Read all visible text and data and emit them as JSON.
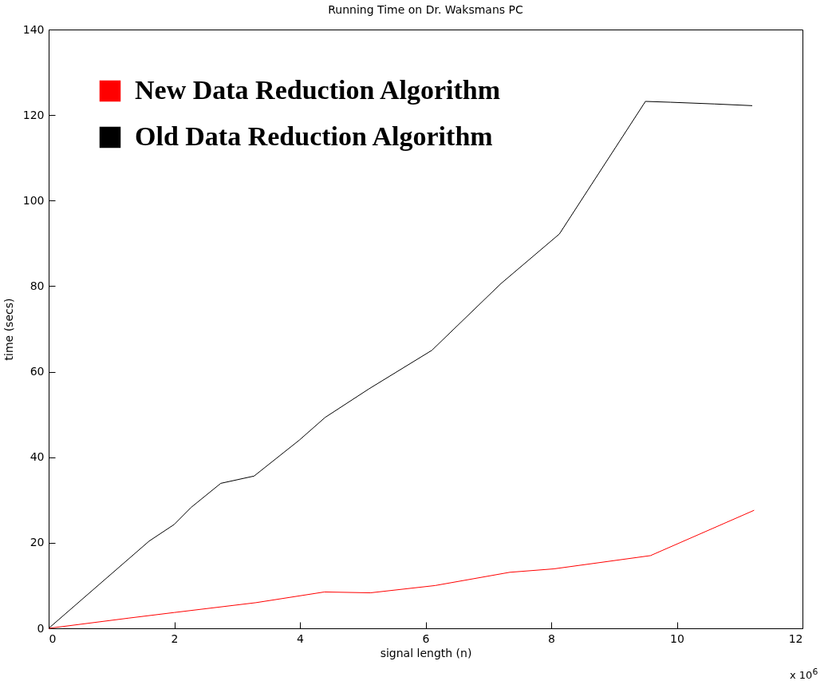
{
  "chart_data": {
    "type": "line",
    "title": "Running Time on Dr. Waksmans PC",
    "xlabel": "signal length (n)",
    "ylabel": "time (secs)",
    "annotations": [
      "x 10$^{6}$"
    ],
    "xlim": [
      0,
      12
    ],
    "xticks": [
      0,
      2,
      4,
      6,
      8,
      10,
      12
    ],
    "ylim": [
      0,
      140
    ],
    "yticks": [
      0,
      20,
      40,
      60,
      80,
      100,
      120,
      140
    ],
    "grid": false,
    "legend": "top left",
    "line_style": "solid",
    "marker": "none",
    "series": [
      {
        "name": "New Data Reduction Algorithm",
        "color": "#ff0000",
        "x": [
          0,
          1.28,
          2,
          3.3,
          4.39,
          5.12,
          6.15,
          7.34,
          8.04,
          9.58,
          11.23
        ],
        "values": [
          0,
          2.4,
          3.7,
          6,
          8.5,
          8.3,
          10,
          13.1,
          13.9,
          17,
          27.6
        ]
      },
      {
        "name": "Old Data Reduction Algorithm",
        "color": "#000000",
        "x": [
          0,
          1.6,
          2,
          2.27,
          2.74,
          3.27,
          3.99,
          4.4,
          5.1,
          6.1,
          7.2,
          8.13,
          9.5,
          9.9,
          10.6,
          11.2
        ],
        "values": [
          0,
          20.4,
          24.3,
          28.3,
          33.9,
          35.6,
          44,
          49.3,
          56,
          65,
          80.6,
          92.2,
          123.2,
          123,
          122.6,
          122.2
        ]
      }
    ]
  }
}
